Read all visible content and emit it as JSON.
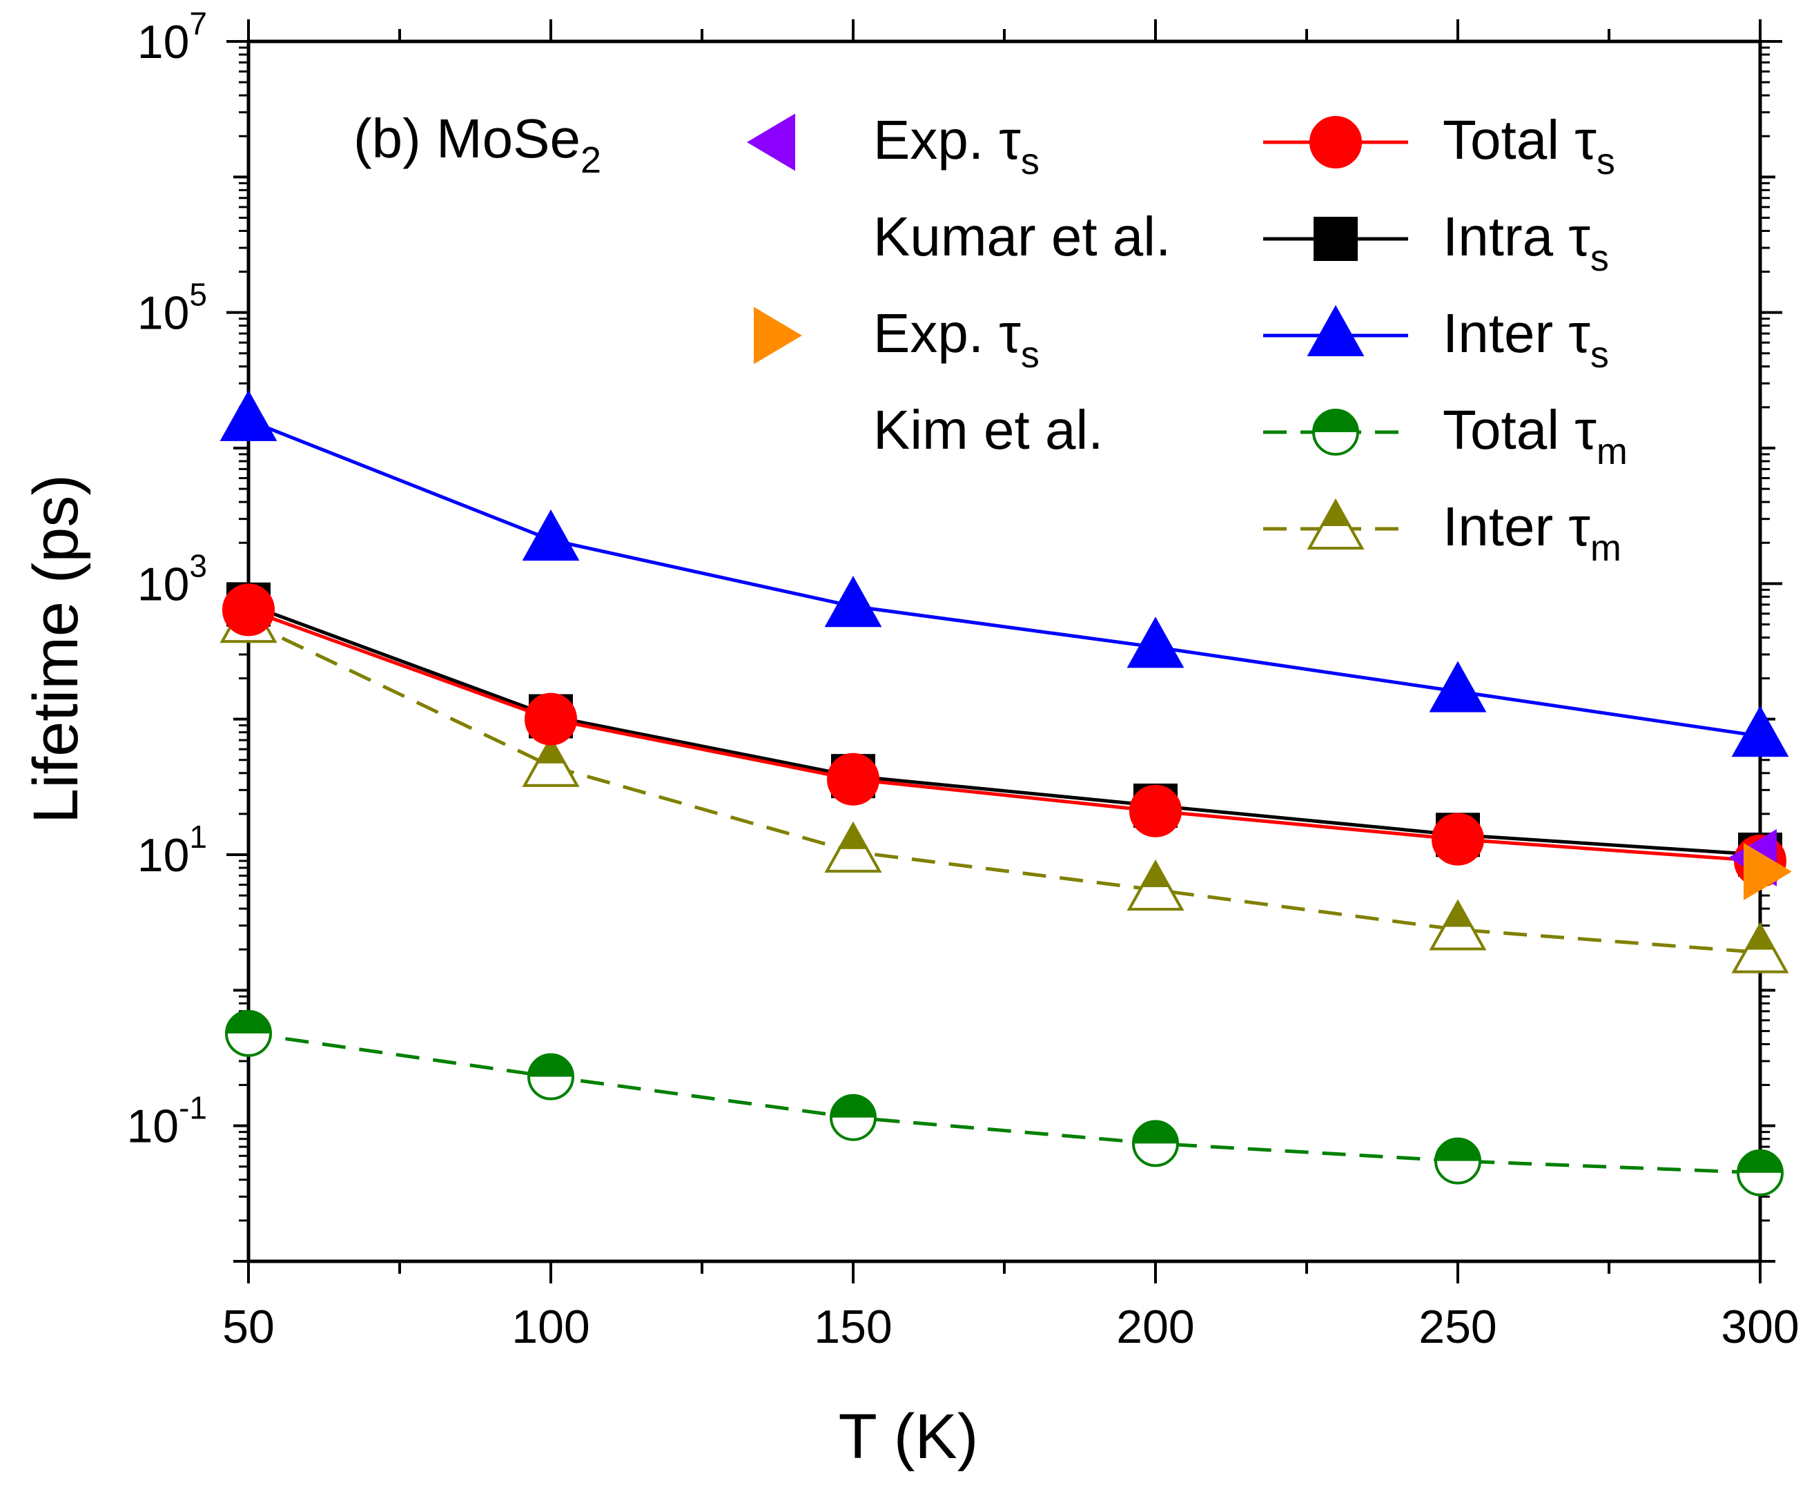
{
  "chart_data": {
    "type": "line",
    "panel_label": {
      "text": "(b) MoSe",
      "sub": "2"
    },
    "xlabel": "T (K)",
    "ylabel": "Lifetime (ps)",
    "xlim": [
      50,
      300
    ],
    "ylim_log10": [
      -2,
      7
    ],
    "yscale": "log",
    "x_major_ticks": [
      50,
      100,
      150,
      200,
      250,
      300
    ],
    "x_tick_labels": [
      "50",
      "100",
      "150",
      "200",
      "250",
      "300"
    ],
    "y_tick_labels": [
      {
        "base": "10",
        "exp": "7",
        "log": 7
      },
      {
        "base": "10",
        "exp": "5",
        "log": 5
      },
      {
        "base": "10",
        "exp": "3",
        "log": 3
      },
      {
        "base": "10",
        "exp": "1",
        "log": 1
      },
      {
        "base": "10",
        "exp": "-1",
        "log": -1
      }
    ],
    "x": [
      50,
      100,
      150,
      200,
      250,
      300
    ],
    "series": [
      {
        "key": "inter_ts",
        "name": "Inter τs",
        "color": "#0000ff",
        "marker": "triangle-up-filled",
        "line": "solid",
        "values": [
          16000,
          2100,
          680,
          340,
          160,
          75
        ]
      },
      {
        "key": "intra_ts",
        "name": "Intra τs",
        "color": "#000000",
        "marker": "square-filled",
        "line": "solid",
        "values": [
          700,
          105,
          38,
          23,
          14,
          10
        ]
      },
      {
        "key": "total_ts",
        "name": "Total τs",
        "color": "#ff0000",
        "marker": "circle-filled",
        "line": "solid",
        "values": [
          640,
          100,
          36,
          21,
          13,
          9
        ]
      },
      {
        "key": "inter_tm",
        "name": "Inter τm",
        "color": "#808000",
        "marker": "triangle-up-halffilled",
        "line": "dashed",
        "values": [
          520,
          45,
          10.5,
          5.5,
          2.8,
          1.9
        ]
      },
      {
        "key": "total_tm",
        "name": "Total τm",
        "color": "#008000",
        "marker": "circle-halffilled",
        "line": "dashed",
        "values": [
          0.48,
          0.23,
          0.115,
          0.074,
          0.055,
          0.045
        ]
      }
    ],
    "experiments": [
      {
        "key": "exp_kumar",
        "x": 300,
        "value": 9.5,
        "color": "#8b00ff",
        "marker": "triangle-left-filled"
      },
      {
        "key": "exp_kim",
        "x": 300,
        "value": 7.5,
        "color": "#ff8c00",
        "marker": "triangle-right-filled"
      }
    ],
    "legend": {
      "placement": "top",
      "experimental": [
        {
          "key": "exp_kumar",
          "label": "Exp. τ",
          "sub": "s",
          "author": "Kumar et al.",
          "color": "#8b00ff"
        },
        {
          "key": "exp_kim",
          "label": "Exp. τ",
          "sub": "s",
          "author": "Kim et al.",
          "color": "#ff8c00"
        }
      ],
      "theory": [
        {
          "key": "total_ts",
          "label": "Total τ",
          "sub": "s"
        },
        {
          "key": "intra_ts",
          "label": "Intra τ",
          "sub": "s"
        },
        {
          "key": "inter_ts",
          "label": "Inter τ",
          "sub": "s"
        },
        {
          "key": "total_tm",
          "label": "Total τ",
          "sub": "m"
        },
        {
          "key": "inter_tm",
          "label": "Inter τ",
          "sub": "m"
        }
      ]
    }
  }
}
